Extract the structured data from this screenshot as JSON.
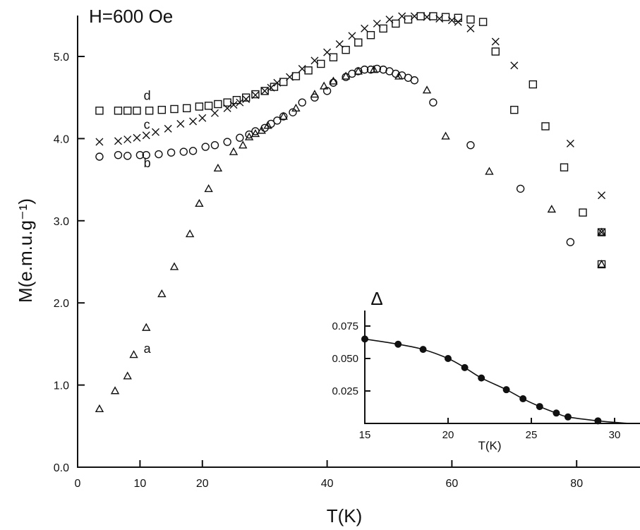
{
  "chart_data": [
    {
      "type": "scatter",
      "title": "H=600 Oe",
      "xlabel": "T(K)",
      "ylabel": "M(e.m.u.g⁻¹)",
      "xlim": [
        0,
        90
      ],
      "ylim": [
        0,
        5.5
      ],
      "x_ticks": [
        "0",
        "10",
        "20",
        "40",
        "60",
        "80"
      ],
      "y_ticks": [
        "0.0",
        "1.0",
        "2.0",
        "3.0",
        "4.0",
        "5.0"
      ],
      "grid": false,
      "series": [
        {
          "name": "a",
          "marker": "triangle",
          "points": [
            [
              3.5,
              0.71
            ],
            [
              6,
              0.93
            ],
            [
              8,
              1.11
            ],
            [
              9,
              1.37
            ],
            [
              11,
              1.7
            ],
            [
              13.5,
              2.11
            ],
            [
              15.5,
              2.44
            ],
            [
              18,
              2.84
            ],
            [
              19.5,
              3.21
            ],
            [
              21,
              3.39
            ],
            [
              22.5,
              3.64
            ],
            [
              25,
              3.84
            ],
            [
              26.5,
              3.92
            ],
            [
              27.5,
              4.02
            ],
            [
              28.5,
              4.06
            ],
            [
              29.5,
              4.1
            ],
            [
              30.5,
              4.16
            ],
            [
              33,
              4.27
            ],
            [
              35,
              4.37
            ],
            [
              38,
              4.54
            ],
            [
              39.5,
              4.64
            ],
            [
              41,
              4.7
            ],
            [
              43,
              4.76
            ],
            [
              45,
              4.82
            ],
            [
              47.5,
              4.84
            ],
            [
              51.5,
              4.76
            ],
            [
              56,
              4.59
            ],
            [
              59,
              4.03
            ],
            [
              66,
              3.6
            ],
            [
              76,
              3.14
            ],
            [
              84,
              2.86
            ],
            [
              84,
              2.47
            ]
          ],
          "label_position": [
            3.8,
            1.39
          ]
        },
        {
          "name": "b",
          "marker": "circle",
          "points": [
            [
              3.5,
              3.78
            ],
            [
              6.5,
              3.8
            ],
            [
              8,
              3.79
            ],
            [
              10,
              3.8
            ],
            [
              11,
              3.8
            ],
            [
              13,
              3.81
            ],
            [
              15,
              3.83
            ],
            [
              17,
              3.84
            ],
            [
              18.5,
              3.85
            ],
            [
              20.5,
              3.9
            ],
            [
              22,
              3.92
            ],
            [
              24,
              3.96
            ],
            [
              26,
              4.01
            ],
            [
              27.5,
              4.05
            ],
            [
              28.5,
              4.09
            ],
            [
              30,
              4.13
            ],
            [
              31,
              4.18
            ],
            [
              32,
              4.22
            ],
            [
              33,
              4.27
            ],
            [
              34.5,
              4.32
            ],
            [
              36,
              4.44
            ],
            [
              38,
              4.5
            ],
            [
              40,
              4.58
            ],
            [
              41,
              4.68
            ],
            [
              43,
              4.75
            ],
            [
              44,
              4.79
            ],
            [
              45,
              4.82
            ],
            [
              46,
              4.84
            ],
            [
              47,
              4.84
            ],
            [
              48,
              4.85
            ],
            [
              49,
              4.84
            ],
            [
              50,
              4.82
            ],
            [
              51,
              4.79
            ],
            [
              52,
              4.77
            ],
            [
              53,
              4.74
            ],
            [
              54,
              4.71
            ],
            [
              57,
              4.44
            ],
            [
              63,
              3.92
            ],
            [
              71,
              3.39
            ],
            [
              79,
              2.74
            ]
          ],
          "label_position": [
            3.8,
            3.65
          ]
        },
        {
          "name": "c",
          "marker": "cross",
          "points": [
            [
              3.5,
              3.96
            ],
            [
              6.5,
              3.97
            ],
            [
              8,
              3.99
            ],
            [
              9.5,
              4.01
            ],
            [
              11,
              4.04
            ],
            [
              12.5,
              4.08
            ],
            [
              14.5,
              4.12
            ],
            [
              16.5,
              4.18
            ],
            [
              18.5,
              4.21
            ],
            [
              20,
              4.25
            ],
            [
              22,
              4.31
            ],
            [
              24,
              4.37
            ],
            [
              25,
              4.41
            ],
            [
              26,
              4.44
            ],
            [
              27,
              4.48
            ],
            [
              28.5,
              4.53
            ],
            [
              30,
              4.58
            ],
            [
              31,
              4.62
            ],
            [
              32,
              4.68
            ],
            [
              34,
              4.75
            ],
            [
              36,
              4.85
            ],
            [
              38,
              4.95
            ],
            [
              40,
              5.05
            ],
            [
              42,
              5.15
            ],
            [
              44,
              5.25
            ],
            [
              46,
              5.34
            ],
            [
              48,
              5.4
            ],
            [
              50,
              5.45
            ],
            [
              52,
              5.49
            ],
            [
              54,
              5.49
            ],
            [
              56,
              5.48
            ],
            [
              58,
              5.46
            ],
            [
              60,
              5.44
            ],
            [
              61,
              5.42
            ],
            [
              63,
              5.34
            ],
            [
              67,
              5.18
            ],
            [
              70,
              4.89
            ],
            [
              79,
              3.94
            ],
            [
              84,
              3.31
            ],
            [
              84,
              2.86
            ]
          ],
          "label_position": [
            3.8,
            4.12
          ]
        },
        {
          "name": "d",
          "marker": "square",
          "points": [
            [
              3.5,
              4.34
            ],
            [
              6.5,
              4.34
            ],
            [
              8,
              4.34
            ],
            [
              9.5,
              4.34
            ],
            [
              11.5,
              4.34
            ],
            [
              13.5,
              4.35
            ],
            [
              15.5,
              4.36
            ],
            [
              17.5,
              4.37
            ],
            [
              19.5,
              4.39
            ],
            [
              21,
              4.4
            ],
            [
              22.5,
              4.42
            ],
            [
              24,
              4.44
            ],
            [
              25.5,
              4.47
            ],
            [
              27,
              4.5
            ],
            [
              28.5,
              4.54
            ],
            [
              30,
              4.58
            ],
            [
              31.5,
              4.63
            ],
            [
              33,
              4.69
            ],
            [
              35,
              4.76
            ],
            [
              37,
              4.83
            ],
            [
              39,
              4.91
            ],
            [
              41,
              4.99
            ],
            [
              43,
              5.08
            ],
            [
              45,
              5.17
            ],
            [
              47,
              5.26
            ],
            [
              49,
              5.34
            ],
            [
              51,
              5.4
            ],
            [
              53,
              5.45
            ],
            [
              55,
              5.49
            ],
            [
              57,
              5.49
            ],
            [
              59,
              5.48
            ],
            [
              61,
              5.47
            ],
            [
              63,
              5.45
            ],
            [
              65,
              5.42
            ],
            [
              67,
              5.06
            ],
            [
              70,
              4.35
            ],
            [
              73,
              4.66
            ],
            [
              75,
              4.15
            ],
            [
              78,
              3.65
            ],
            [
              81,
              3.1
            ],
            [
              84,
              2.86
            ],
            [
              84,
              2.47
            ]
          ],
          "label_position": [
            3.8,
            4.47
          ]
        }
      ]
    },
    {
      "type": "line",
      "title": "Δ",
      "xlabel": "T(K)",
      "ylabel": "",
      "xlim": [
        15,
        31
      ],
      "ylim": [
        0,
        0.08
      ],
      "x_ticks": [
        "15",
        "20",
        "25",
        "30"
      ],
      "y_ticks": [
        "0.025",
        "0.050",
        "0.075"
      ],
      "series": [
        {
          "name": "",
          "marker": "filled-circle",
          "x": [
            15,
            17,
            18.5,
            20,
            21,
            22,
            23.5,
            24.5,
            25.5,
            26.5,
            27.2,
            29
          ],
          "y": [
            0.065,
            0.061,
            0.057,
            0.05,
            0.043,
            0.035,
            0.026,
            0.019,
            0.013,
            0.008,
            0.005,
            0.002
          ]
        }
      ]
    }
  ]
}
